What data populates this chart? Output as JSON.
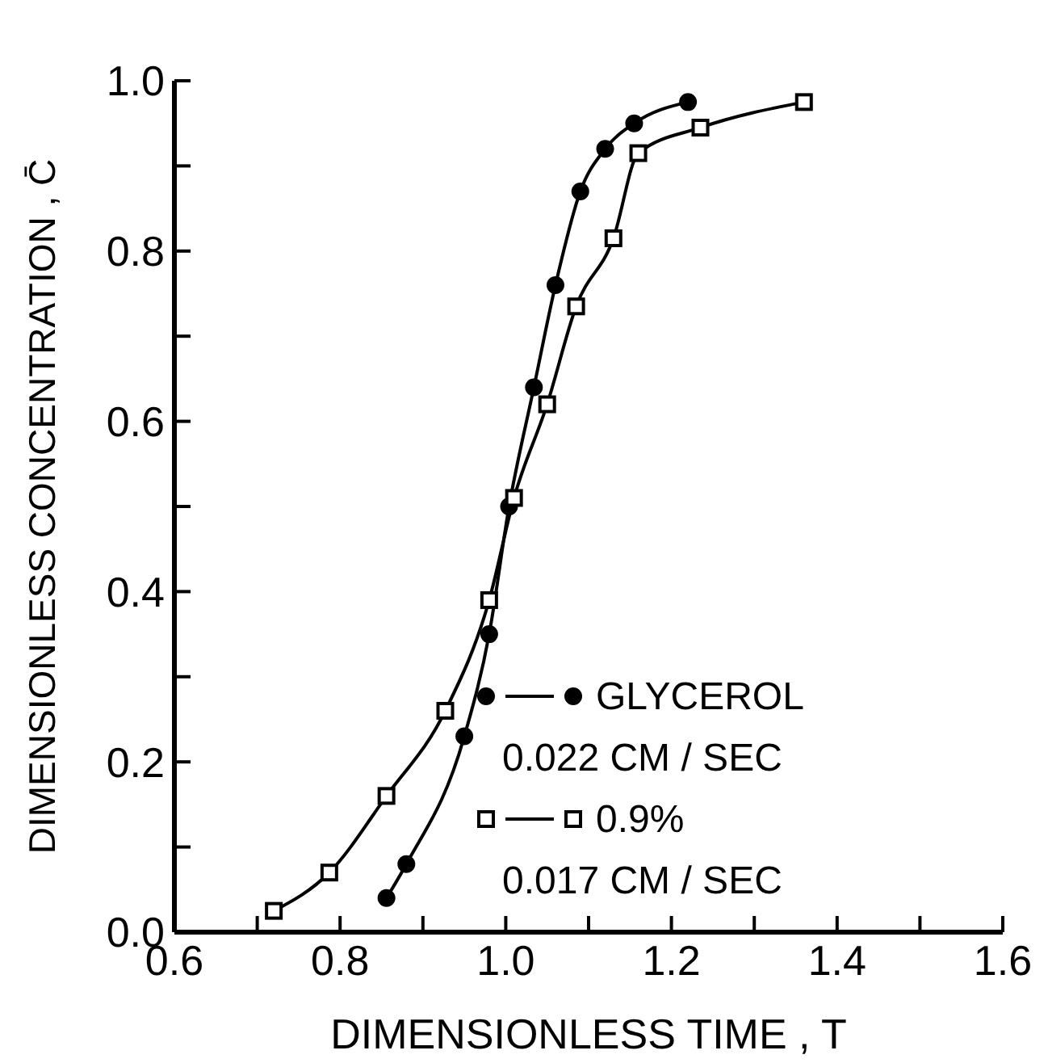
{
  "chart_data": {
    "type": "line",
    "xlabel": "DIMENSIONLESS TIME , T",
    "ylabel": "DIMENSIONLESS CONCENTRATION , C̄",
    "series": [
      {
        "name": "GLYCEROL",
        "color": "#000000",
        "marker": "circle",
        "x": [
          0.856,
          0.88,
          0.95,
          0.98,
          1.004,
          1.034,
          1.06,
          1.09,
          1.12,
          1.155,
          1.22
        ],
        "values": [
          0.04,
          0.08,
          0.23,
          0.35,
          0.5,
          0.64,
          0.76,
          0.87,
          0.92,
          0.95,
          0.975
        ]
      },
      {
        "name": "0.9%",
        "color": "#000000",
        "marker": "square",
        "x": [
          0.72,
          0.787,
          0.856,
          0.927,
          0.98,
          1.01,
          1.05,
          1.085,
          1.13,
          1.16,
          1.235,
          1.36
        ],
        "values": [
          0.025,
          0.07,
          0.16,
          0.26,
          0.39,
          0.51,
          0.62,
          0.735,
          0.815,
          0.915,
          0.945,
          0.975
        ]
      }
    ],
    "annotations": [
      "0.022 CM / SEC",
      "0.017 CM / SEC"
    ],
    "xlim": [
      0.6,
      1.6
    ],
    "xticks": [
      0.6,
      {
        "value": 0.7,
        "label": null
      },
      0.8,
      {
        "value": 0.9,
        "label": null
      },
      {
        "value": 1.0,
        "label": "1.0"
      },
      {
        "value": 1.1,
        "label": null
      },
      1.2,
      {
        "value": 1.3,
        "label": null
      },
      1.4,
      {
        "value": 1.5,
        "label": null
      },
      1.6
    ],
    "ylim": [
      0,
      1
    ],
    "yticks": [
      {
        "value": 0,
        "label": "0.0"
      },
      {
        "value": 0.1,
        "label": null
      },
      0.2,
      {
        "value": 0.3,
        "label": null
      },
      0.4,
      {
        "value": 0.5,
        "label": null
      },
      0.6,
      {
        "value": 0.7,
        "label": null
      },
      0.8,
      {
        "value": 0.9,
        "label": null
      },
      {
        "value": 1,
        "label": "1.0"
      }
    ],
    "grid": false,
    "legend": "bottom right",
    "line_style": "solid"
  }
}
